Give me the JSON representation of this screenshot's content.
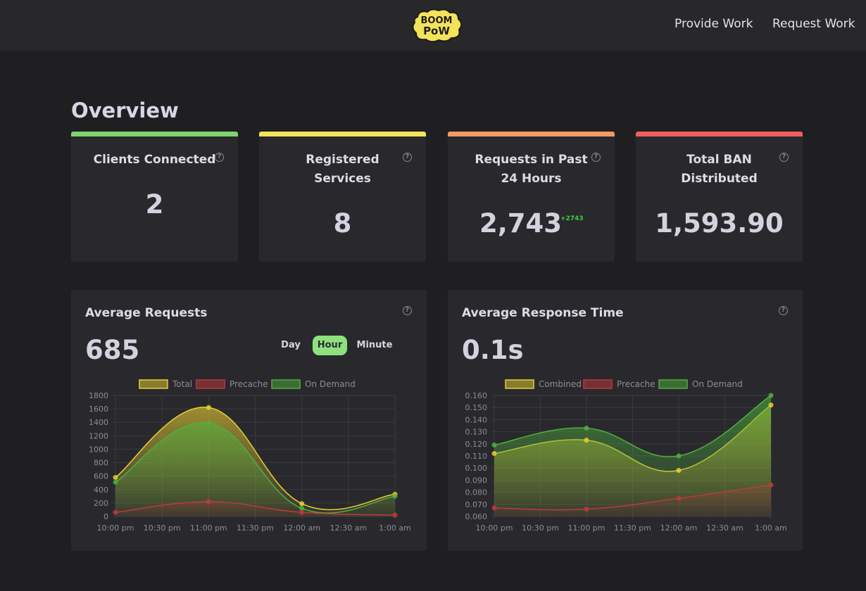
{
  "nav": {
    "logo_line1": "BOOM",
    "logo_line2": "PoW",
    "provide_work": "Provide Work",
    "request_work": "Request Work"
  },
  "page_title": "Overview",
  "stats": [
    {
      "label_line1": "Clients Connected",
      "label_line2": "",
      "value": "2",
      "accent": "#7fd46f",
      "delta": ""
    },
    {
      "label_line1": "Registered",
      "label_line2": "Services",
      "value": "8",
      "accent": "#f3e35a",
      "delta": ""
    },
    {
      "label_line1": "Requests in Past",
      "label_line2": "24 Hours",
      "value": "2,743",
      "accent": "#f29a62",
      "delta": "+2743"
    },
    {
      "label_line1": "Total BAN",
      "label_line2": "Distributed",
      "value": "1,593.90",
      "accent": "#f25e5e",
      "delta": ""
    }
  ],
  "help_glyph": "?",
  "avg_requests": {
    "title": "Average Requests",
    "value": "685",
    "tabs": [
      "Day",
      "Hour",
      "Minute"
    ],
    "active_tab": "Hour"
  },
  "avg_response": {
    "title": "Average Response Time",
    "value": "0.1s"
  },
  "chart_data": [
    {
      "type": "area",
      "x": [
        "10:00 pm",
        "11:00 pm",
        "12:00 am",
        "1:00 am"
      ],
      "x_ticks": [
        "10:00 pm",
        "10:30 pm",
        "11:00 pm",
        "11:30 pm",
        "12:00 am",
        "12:30 am",
        "1:00 am"
      ],
      "series": [
        {
          "name": "Total",
          "color": "#e8cf32",
          "values": [
            580,
            1620,
            190,
            330
          ]
        },
        {
          "name": "Precache",
          "color": "#c0393b",
          "values": [
            60,
            220,
            60,
            20
          ]
        },
        {
          "name": "On Demand",
          "color": "#4fb03e",
          "values": [
            510,
            1390,
            120,
            300
          ]
        }
      ],
      "ylim": [
        0,
        1800
      ],
      "y_ticks": [
        "0",
        "200",
        "400",
        "600",
        "800",
        "1000",
        "1200",
        "1400",
        "1600",
        "1800"
      ],
      "legend": "top",
      "grid": true
    },
    {
      "type": "area",
      "x": [
        "10:00 pm",
        "11:00 pm",
        "12:00 am",
        "1:00 am"
      ],
      "x_ticks": [
        "10:00 pm",
        "10:30 pm",
        "11:00 pm",
        "11:30 pm",
        "12:00 am",
        "12:30 am",
        "1:00 am"
      ],
      "series": [
        {
          "name": "Combined",
          "color": "#e8cf32",
          "values": [
            0.112,
            0.123,
            0.098,
            0.152
          ]
        },
        {
          "name": "Precache",
          "color": "#c0393b",
          "values": [
            0.067,
            0.066,
            0.075,
            0.086
          ]
        },
        {
          "name": "On Demand",
          "color": "#4fb03e",
          "values": [
            0.119,
            0.133,
            0.11,
            0.16
          ]
        }
      ],
      "ylim": [
        0.06,
        0.16
      ],
      "y_ticks": [
        "0.060",
        "0.070",
        "0.080",
        "0.090",
        "0.100",
        "0.110",
        "0.120",
        "0.130",
        "0.140",
        "0.150",
        "0.160"
      ],
      "legend": "top",
      "grid": true
    }
  ]
}
